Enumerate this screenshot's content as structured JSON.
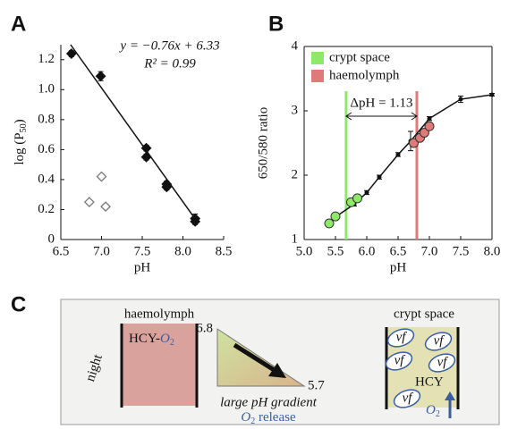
{
  "chart_data": [
    {
      "type": "scatter",
      "label": "A",
      "xlabel": "pH",
      "ylabel": [
        "log (P",
        "50",
        ")"
      ],
      "xlim": [
        6.5,
        8.5
      ],
      "xticks": [
        6.5,
        {
          "value": 7,
          "label": "7.0"
        },
        7.5,
        {
          "value": 8,
          "label": "8.0"
        },
        8.5
      ],
      "ylim": [
        0,
        1.3
      ],
      "yticks": [
        0,
        0.2,
        0.4,
        0.6,
        0.8,
        {
          "value": 1,
          "label": "1.0"
        },
        1.2
      ],
      "annotations": [
        "y = −0.76x + 6.33",
        "R² = 0.99"
      ],
      "series": [
        {
          "marker": "filled-diamond",
          "color": "#111",
          "x": [
            6.63,
            6.99,
            7.55,
            7.55,
            7.8,
            7.8,
            8.15,
            8.15
          ],
          "values": [
            1.24,
            1.09,
            0.61,
            0.55,
            0.37,
            0.35,
            0.14,
            0.12
          ],
          "errors": [
            0.02,
            0.03,
            0.02,
            0.02,
            0.02,
            0.02,
            0.03,
            0.02
          ]
        },
        {
          "marker": "open-diamond",
          "color": "#777",
          "x": [
            6.85,
            7.0,
            7.05
          ],
          "values": [
            0.25,
            0.42,
            0.22
          ]
        }
      ],
      "fit": {
        "x": [
          6.62,
          8.16
        ],
        "values": [
          1.3,
          0.13
        ]
      }
    },
    {
      "type": "line",
      "label": "B",
      "xlabel": "pH",
      "ylabel": "650/580 ratio",
      "xlim": [
        5,
        8
      ],
      "xticks": [
        {
          "value": 5,
          "label": "5.0"
        },
        5.5,
        {
          "value": 6,
          "label": "6.0"
        },
        6.5,
        {
          "value": 7,
          "label": "7.0"
        },
        7.5,
        {
          "value": 8,
          "label": "8.0"
        }
      ],
      "ylim": [
        1,
        4
      ],
      "yticks": [
        1,
        2,
        3,
        4
      ],
      "series": [
        {
          "color": "#111",
          "x": [
            5.5,
            5.8,
            6.0,
            6.2,
            6.5,
            6.7,
            7.0,
            7.5,
            8.0
          ],
          "values": [
            1.35,
            1.55,
            1.73,
            1.97,
            2.32,
            2.53,
            2.88,
            3.18,
            3.25
          ],
          "errors": [
            0.04,
            0.03,
            0.03,
            0.03,
            0.03,
            0.15,
            0.03,
            0.05,
            0.02
          ]
        }
      ],
      "regions": [
        {
          "name": "crypt space",
          "color": "#8ee86a",
          "x": 5.67,
          "points": {
            "x": [
              5.4,
              5.5,
              5.75,
              5.85
            ],
            "values": [
              1.25,
              1.36,
              1.58,
              1.64
            ]
          }
        },
        {
          "name": "haemolymph",
          "color": "#e07a78",
          "x": 6.8,
          "points": {
            "x": [
              6.75,
              6.85,
              6.92,
              7.0
            ],
            "values": [
              2.5,
              2.58,
              2.66,
              2.76
            ]
          }
        }
      ],
      "annotation": "ΔpH = 1.13"
    }
  ],
  "diagram": {
    "label": "C",
    "left": {
      "title": "haemolymph",
      "content": [
        "HCY-",
        "O",
        "2"
      ],
      "side": "night"
    },
    "middle": {
      "top": "6.8",
      "bottom": "5.7",
      "caption": "large pH gradient",
      "release": [
        "O",
        "2",
        " release"
      ]
    },
    "right": {
      "title": "crypt space",
      "cells": [
        "vf",
        "vf",
        "vf",
        "vf",
        "vf"
      ],
      "content": "HCY",
      "gas": [
        "O",
        "2"
      ]
    }
  }
}
